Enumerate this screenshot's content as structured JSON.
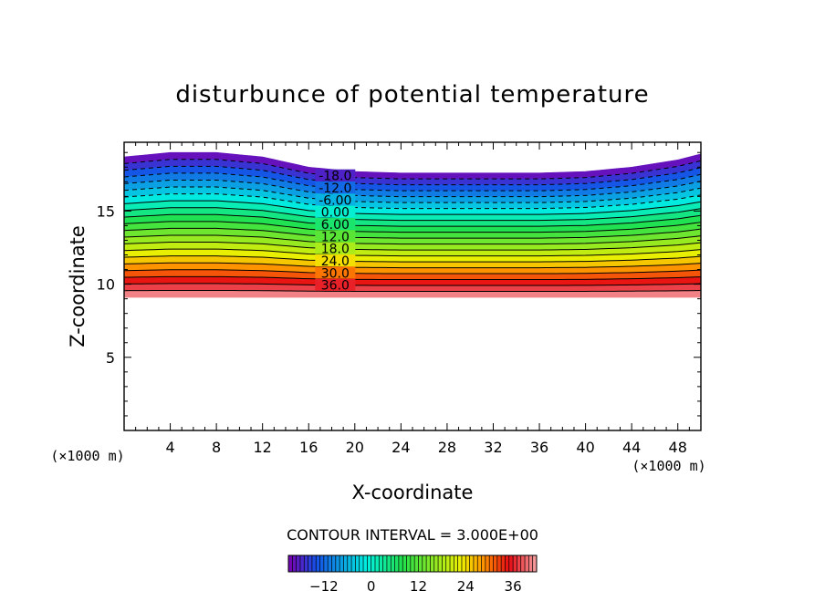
{
  "chart_data": {
    "type": "contour",
    "title": "disturbunce of potential temperature",
    "xlabel": "X-coordinate",
    "ylabel": "Z-coordinate",
    "x_unit": "(×1000 m)",
    "y_unit": "(×1000 m)",
    "xlim": [
      0,
      50
    ],
    "ylim": [
      0,
      19.7
    ],
    "x_ticks": [
      4,
      8,
      12,
      16,
      20,
      24,
      28,
      32,
      36,
      40,
      44,
      48
    ],
    "y_ticks": [
      5,
      10,
      15
    ],
    "contour_interval_label": "CONTOUR INTERVAL = 3.000E+00",
    "contour_interval": 3,
    "level_min": -21,
    "level_max": 42,
    "contour_labels": [
      "-18.0",
      "-12.0",
      "-6.00",
      "0.00",
      "6.00",
      "12.0",
      "18.0",
      "24.0",
      "30.0",
      "36.0"
    ],
    "field_bottom_z": 9.1,
    "field_top_z": {
      "x": [
        0,
        4,
        8,
        12,
        16,
        20,
        24,
        28,
        32,
        36,
        40,
        44,
        48,
        50
      ],
      "z": [
        18.7,
        19.0,
        19.0,
        18.7,
        18.0,
        17.7,
        17.6,
        17.6,
        17.6,
        17.6,
        17.7,
        18.0,
        18.5,
        18.9
      ]
    },
    "colorbar_ticks": [
      -12,
      0,
      12,
      24,
      36
    ],
    "colors": {
      "violet": "#7a00b0",
      "blue": "#1650e6",
      "cyan": "#00f0e0",
      "green": "#22e04a",
      "yellow": "#f0f000",
      "orange": "#ff8a00",
      "red": "#e60a14",
      "pink": "#f4a2a2"
    }
  }
}
